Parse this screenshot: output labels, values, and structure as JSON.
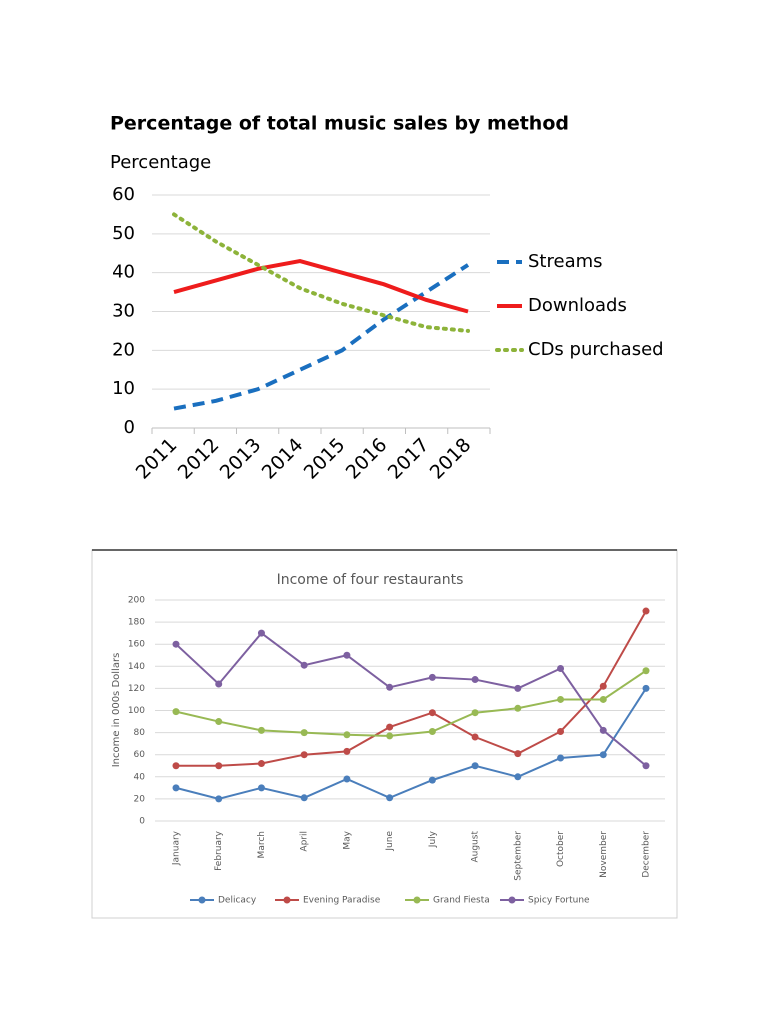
{
  "chart_data": [
    {
      "type": "line",
      "title": "Percentage of total music sales by method",
      "y_label": "Percentage",
      "categories": [
        "2011",
        "2012",
        "2013",
        "2014",
        "2015",
        "2016",
        "2017",
        "2018"
      ],
      "series": [
        {
          "name": "Streams",
          "color": "#1a6fbf",
          "style": "dashed",
          "values": [
            5,
            7,
            10,
            15,
            20,
            28,
            35,
            42
          ]
        },
        {
          "name": "Downloads",
          "color": "#ee1c1c",
          "style": "solid",
          "values": [
            35,
            38,
            41,
            43,
            40,
            37,
            33,
            30
          ]
        },
        {
          "name": "CDs purchased",
          "color": "#8db33a",
          "style": "dotted",
          "values": [
            55,
            48,
            42,
            36,
            32,
            29,
            26,
            25
          ]
        }
      ],
      "ylim": [
        0,
        60
      ],
      "yticks": [
        0,
        10,
        20,
        30,
        40,
        50,
        60
      ],
      "grid": true,
      "legend": "right",
      "markers": false
    },
    {
      "type": "line",
      "title": "Income of four restaurants",
      "y_label": "Income in 000s Dollars",
      "categories": [
        "January",
        "February",
        "March",
        "April",
        "May",
        "June",
        "July",
        "August",
        "September",
        "October",
        "November",
        "December"
      ],
      "series": [
        {
          "name": "Delicacy",
          "color": "#4a7ebb",
          "style": "solid",
          "values": [
            30,
            20,
            30,
            21,
            38,
            21,
            37,
            50,
            40,
            57,
            60,
            120
          ]
        },
        {
          "name": "Evening Paradise",
          "color": "#be4b48",
          "style": "solid",
          "values": [
            50,
            50,
            52,
            60,
            63,
            85,
            98,
            76,
            61,
            81,
            122,
            190
          ]
        },
        {
          "name": "Grand Fiesta",
          "color": "#98b954",
          "style": "solid",
          "values": [
            99,
            90,
            82,
            80,
            78,
            77,
            81,
            98,
            102,
            110,
            110,
            136
          ]
        },
        {
          "name": "Spicy Fortune",
          "color": "#7d60a0",
          "style": "solid",
          "values": [
            160,
            124,
            170,
            141,
            150,
            121,
            130,
            128,
            120,
            138,
            82,
            50
          ]
        }
      ],
      "ylim": [
        0,
        200
      ],
      "yticks": [
        0,
        20,
        40,
        60,
        80,
        100,
        120,
        140,
        160,
        180,
        200
      ],
      "grid": true,
      "legend": "bottom",
      "markers": true
    }
  ]
}
